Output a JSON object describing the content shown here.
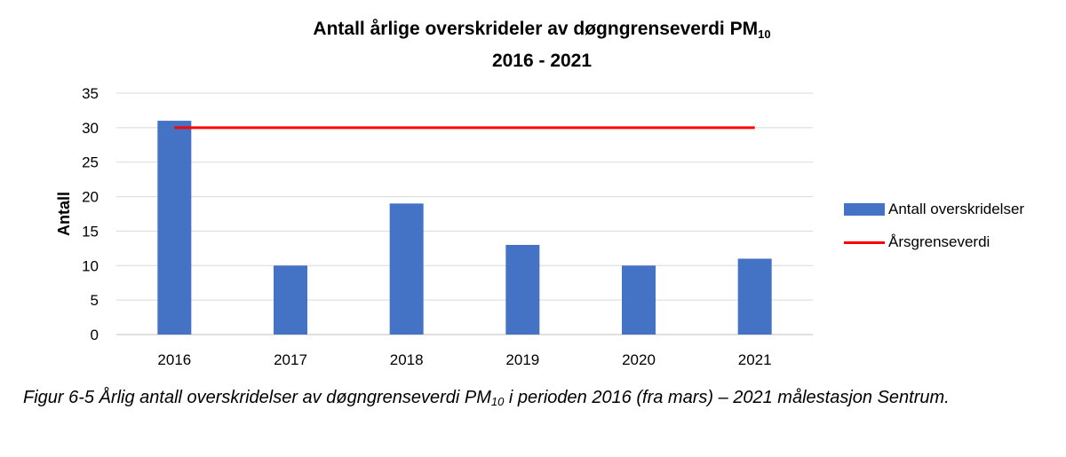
{
  "chart_data": {
    "type": "bar",
    "title_main": "Antall årlige overskrideler av døgngrenseverdi PM",
    "title_sub": "10",
    "title_line2": "2016 - 2021",
    "ylabel": "Antall",
    "categories": [
      "2016",
      "2017",
      "2018",
      "2019",
      "2020",
      "2021"
    ],
    "ylim": [
      0,
      35
    ],
    "yticks": [
      0,
      5,
      10,
      15,
      20,
      25,
      30,
      35
    ],
    "series": [
      {
        "name": "Antall overskridelser",
        "type": "bar",
        "color": "#4472c4",
        "values": [
          31,
          10,
          19,
          13,
          10,
          11
        ]
      },
      {
        "name": "Årsgrenseverdi",
        "type": "line",
        "color": "#ff0000",
        "values": [
          30,
          30,
          30,
          30,
          30,
          30
        ]
      }
    ],
    "grid": true,
    "legend_position": "right"
  },
  "caption": {
    "part1": "Figur 6-5 Årlig antall overskridelser av døgngrenseverdi PM",
    "sub": "10",
    "part2": " i perioden 2016 (fra mars) – 2021 målestasjon Sentrum."
  }
}
